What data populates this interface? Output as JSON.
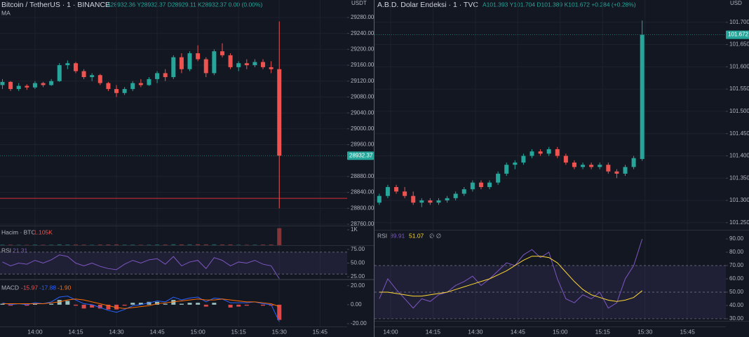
{
  "chart_data": [
    {
      "type": "candlestick",
      "title": "Bitcoin / TetherUS · 1 · BINANCE",
      "ohlc_text": "A28932.36 Y28932.37 D28929.11 K28932.37 0.00 (0.00%)",
      "ma_label": "MA",
      "axis_unit": "USDT",
      "up_color": "#26a69a",
      "down_color": "#ef5350",
      "x": [
        -12,
        -9,
        -6,
        -3,
        0,
        3,
        6,
        9,
        12,
        15,
        18,
        21,
        24,
        27,
        30,
        33,
        36,
        39,
        42,
        45,
        48,
        51,
        54,
        57,
        60,
        63,
        66,
        69,
        72,
        75,
        78,
        81,
        84,
        87,
        90
      ],
      "open": [
        29110,
        29118,
        29100,
        29108,
        29104,
        29115,
        29110,
        29120,
        29160,
        29165,
        29145,
        29130,
        29135,
        29115,
        29100,
        29090,
        29100,
        29115,
        29110,
        29125,
        29140,
        29130,
        29180,
        29150,
        29190,
        29175,
        29140,
        29195,
        29185,
        29155,
        29165,
        29160,
        29168,
        29155,
        29150
      ],
      "high": [
        29125,
        29120,
        29115,
        29112,
        29120,
        29118,
        29125,
        29165,
        29172,
        29168,
        29150,
        29140,
        29138,
        29118,
        29110,
        29105,
        29120,
        29125,
        29130,
        29145,
        29150,
        29185,
        29190,
        29195,
        29210,
        29180,
        29200,
        29215,
        29190,
        29170,
        29175,
        29175,
        29175,
        29170,
        29270
      ],
      "low": [
        29100,
        29095,
        29095,
        29098,
        29100,
        29105,
        29108,
        29118,
        29150,
        29140,
        29125,
        29120,
        29110,
        29095,
        29080,
        29085,
        29095,
        29105,
        29108,
        29115,
        29120,
        29125,
        29140,
        29145,
        29170,
        29130,
        29135,
        29180,
        29150,
        29145,
        29150,
        29155,
        29150,
        29140,
        28800
      ],
      "close": [
        29118,
        29100,
        29108,
        29104,
        29115,
        29110,
        29120,
        29160,
        29165,
        29145,
        29130,
        29135,
        29115,
        29100,
        29090,
        29100,
        29115,
        29110,
        29125,
        29140,
        29130,
        29180,
        29150,
        29190,
        29175,
        29140,
        29195,
        29185,
        29155,
        29165,
        29160,
        29168,
        29155,
        29150,
        28932.37
      ],
      "xlim": [
        -12.9,
        115
      ],
      "xticks": [
        {
          "value": 0,
          "label": "14:00"
        },
        {
          "value": 15,
          "label": "14:15"
        },
        {
          "value": 30,
          "label": "14:30"
        },
        {
          "value": 45,
          "label": "14:45"
        },
        {
          "value": 60,
          "label": "15:00"
        },
        {
          "value": 75,
          "label": "15:15"
        },
        {
          "value": 90,
          "label": "15:30"
        },
        {
          "value": 105,
          "label": "15:45"
        }
      ],
      "ylim": [
        28756.5,
        29324
      ],
      "yticks": [
        {
          "value": 29280,
          "label": "29280.00"
        },
        {
          "value": 29240,
          "label": "29240.00"
        },
        {
          "value": 29200,
          "label": "29200.00"
        },
        {
          "value": 29160,
          "label": "29160.00"
        },
        {
          "value": 29120,
          "label": "29120.00"
        },
        {
          "value": 29080,
          "label": "29080.00"
        },
        {
          "value": 29040,
          "label": "29040.00"
        },
        {
          "value": 29000,
          "label": "29000.00"
        },
        {
          "value": 28960,
          "label": "28960.00"
        },
        {
          "value": 28880,
          "label": "28880.00"
        },
        {
          "value": 28840,
          "label": "28840.00"
        },
        {
          "value": 28800,
          "label": "28800.00"
        },
        {
          "value": 28760,
          "label": "28760.00"
        }
      ],
      "hline": 28825,
      "volume_title": "Hacim · BTC",
      "volume_last_label": "1.105K",
      "volume": [
        40,
        35,
        30,
        25,
        40,
        30,
        35,
        60,
        45,
        40,
        35,
        30,
        40,
        45,
        50,
        35,
        40,
        30,
        35,
        45,
        40,
        60,
        50,
        55,
        60,
        50,
        55,
        45,
        50,
        35,
        30,
        35,
        40,
        45,
        1105
      ],
      "volume_ylim": [
        0,
        1273
      ],
      "volume_yticks": [
        {
          "value": 1000,
          "label": "1K"
        }
      ],
      "rsi_title": "RSI",
      "rsi": [
        52,
        45,
        50,
        48,
        55,
        50,
        56,
        65,
        62,
        50,
        45,
        50,
        44,
        40,
        38,
        48,
        55,
        50,
        56,
        58,
        48,
        62,
        45,
        52,
        55,
        40,
        60,
        55,
        45,
        52,
        50,
        55,
        48,
        45,
        21.31
      ],
      "rsi_ylim": [
        21.2,
        80.1
      ],
      "rsi_yticks": [
        {
          "value": 75,
          "label": "75.00"
        },
        {
          "value": 50,
          "label": "50.00"
        },
        {
          "value": 25,
          "label": "25.00"
        }
      ],
      "rsi_levels": [
        70,
        30
      ],
      "macd_title": "MACD",
      "macd_text": [
        "-15.97",
        "-17.88",
        "-1.90"
      ],
      "macd_hist": [
        1,
        -1,
        0,
        -1,
        1,
        0,
        1,
        5,
        4,
        -1,
        -4,
        -3,
        -4,
        -5,
        -5,
        -1,
        2,
        2,
        3,
        3,
        1,
        5,
        1,
        2,
        2,
        -2,
        2,
        0,
        -3,
        -2,
        -1,
        0,
        -1,
        -1,
        -15.97
      ],
      "macd": [
        2,
        0,
        1,
        0,
        2,
        1,
        3,
        8,
        9,
        5,
        1,
        0,
        -3,
        -6,
        -8,
        -5,
        -1,
        0,
        2,
        4,
        3,
        8,
        5,
        7,
        8,
        3,
        7,
        6,
        2,
        2,
        2,
        3,
        1,
        0,
        -17.88
      ],
      "macd_signal": [
        1,
        1,
        1,
        1,
        1,
        1,
        2,
        3,
        5,
        6,
        5,
        3,
        1,
        -1,
        -3,
        -4,
        -3,
        -2,
        -1,
        1,
        2,
        3,
        4,
        5,
        6,
        5,
        5,
        6,
        5,
        4,
        3,
        3,
        2,
        1,
        -1.9
      ],
      "macd_ylim": [
        -22.9,
        25.7
      ],
      "macd_yticks": [
        {
          "value": 20,
          "label": "20.00"
        },
        {
          "value": 0,
          "label": "0.00"
        },
        {
          "value": -20,
          "label": "-20.00"
        }
      ]
    },
    {
      "type": "candlestick",
      "title": "A.B.D. Dolar Endeksi · 1 · TVC",
      "ohlc_text": "A101.393 Y101.704 D101.389 K101.672 +0.284 (+0.28%)",
      "axis_unit": "USD",
      "up_color": "#26a69a",
      "down_color": "#ef5350",
      "x": [
        -4,
        -1,
        2,
        5,
        8,
        11,
        14,
        17,
        20,
        23,
        26,
        29,
        32,
        35,
        38,
        41,
        44,
        47,
        50,
        53,
        56,
        59,
        62,
        65,
        68,
        71,
        74,
        77,
        80,
        83,
        86,
        89
      ],
      "open": [
        101.295,
        101.31,
        101.33,
        101.32,
        101.31,
        101.295,
        101.3,
        101.295,
        101.3,
        101.305,
        101.315,
        101.325,
        101.34,
        101.33,
        101.34,
        101.36,
        101.38,
        101.385,
        101.4,
        101.41,
        101.405,
        101.415,
        101.4,
        101.385,
        101.375,
        101.38,
        101.375,
        101.38,
        101.365,
        101.36,
        101.375,
        101.393
      ],
      "high": [
        101.315,
        101.335,
        101.335,
        101.33,
        101.32,
        101.305,
        101.305,
        101.305,
        101.31,
        101.32,
        101.33,
        101.345,
        101.345,
        101.345,
        101.365,
        101.385,
        101.39,
        101.405,
        101.415,
        101.415,
        101.42,
        101.42,
        101.405,
        101.39,
        101.385,
        101.385,
        101.385,
        101.385,
        101.37,
        101.38,
        101.4,
        101.704
      ],
      "low": [
        101.29,
        101.305,
        101.315,
        101.305,
        101.29,
        101.285,
        101.29,
        101.29,
        101.295,
        101.3,
        101.31,
        101.32,
        101.325,
        101.325,
        101.335,
        101.355,
        101.37,
        101.38,
        101.395,
        101.4,
        101.4,
        101.395,
        101.38,
        101.37,
        101.37,
        101.37,
        101.37,
        101.36,
        101.35,
        101.355,
        101.37,
        101.389
      ],
      "close": [
        101.31,
        101.33,
        101.32,
        101.31,
        101.295,
        101.3,
        101.295,
        101.3,
        101.305,
        101.315,
        101.325,
        101.34,
        101.33,
        101.34,
        101.36,
        101.38,
        101.385,
        101.4,
        101.41,
        101.405,
        101.415,
        101.4,
        101.385,
        101.375,
        101.38,
        101.375,
        101.38,
        101.365,
        101.36,
        101.375,
        101.395,
        101.672
      ],
      "xlim": [
        -5.7,
        118.6
      ],
      "xticks": [
        {
          "value": 0,
          "label": "14:00"
        },
        {
          "value": 15,
          "label": "14:15"
        },
        {
          "value": 30,
          "label": "14:30"
        },
        {
          "value": 45,
          "label": "14:45"
        },
        {
          "value": 60,
          "label": "15:00"
        },
        {
          "value": 75,
          "label": "15:15"
        },
        {
          "value": 90,
          "label": "15:30"
        },
        {
          "value": 105,
          "label": "15:45"
        }
      ],
      "ylim": [
        101.234,
        101.75
      ],
      "yticks": [
        {
          "value": 101.7,
          "label": "101.700"
        },
        {
          "value": 101.65,
          "label": "101.650"
        },
        {
          "value": 101.6,
          "label": "101.600"
        },
        {
          "value": 101.55,
          "label": "101.550"
        },
        {
          "value": 101.5,
          "label": "101.500"
        },
        {
          "value": 101.45,
          "label": "101.450"
        },
        {
          "value": 101.4,
          "label": "101.400"
        },
        {
          "value": 101.35,
          "label": "101.350"
        },
        {
          "value": 101.3,
          "label": "101.300"
        },
        {
          "value": 101.25,
          "label": "101.250"
        }
      ],
      "rsi_title": "RSI",
      "rsi_extra": "∅ ∅",
      "rsi": [
        45,
        60,
        52,
        45,
        38,
        45,
        43,
        48,
        50,
        55,
        58,
        62,
        55,
        60,
        66,
        72,
        70,
        78,
        82,
        76,
        80,
        60,
        45,
        42,
        48,
        45,
        50,
        38,
        42,
        60,
        70,
        89.91
      ],
      "rsi_ma": [
        50,
        50,
        49,
        48,
        47,
        47,
        48,
        49,
        50,
        52,
        54,
        56,
        58,
        60,
        63,
        66,
        70,
        74,
        77,
        77,
        76,
        72,
        65,
        58,
        52,
        48,
        46,
        44,
        43,
        44,
        46,
        51.07
      ],
      "rsi_ylim": [
        28.4,
        95.8
      ],
      "rsi_yticks": [
        {
          "value": 90,
          "label": "90.00"
        },
        {
          "value": 80,
          "label": "80.00"
        },
        {
          "value": 70,
          "label": "70.00"
        },
        {
          "value": 60,
          "label": "60.00"
        },
        {
          "value": 50,
          "label": "50.00"
        },
        {
          "value": 40,
          "label": "40.00"
        },
        {
          "value": 30,
          "label": "30.00"
        }
      ],
      "rsi_levels": [
        70,
        50,
        30
      ]
    }
  ]
}
